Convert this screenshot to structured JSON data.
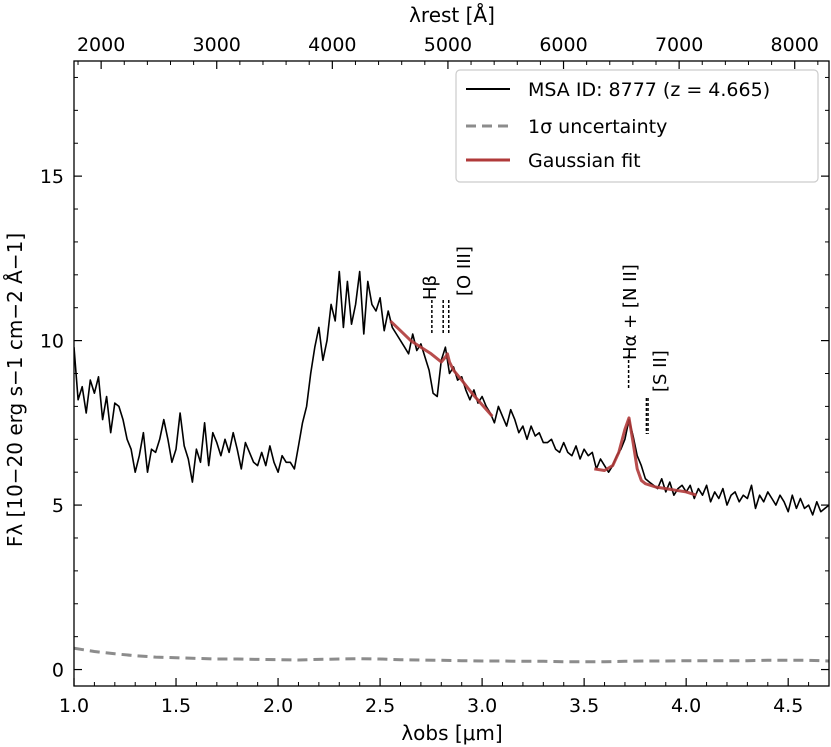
{
  "chart_data": {
    "type": "line",
    "xlabel": "λobs [μm]",
    "xlabel_top": "λrest [Å]",
    "ylabel": "Fλ [10−20 erg s−1 cm−2 Å−1]",
    "xlim": [
      1.0,
      4.7
    ],
    "ylim": [
      -0.5,
      18.5
    ],
    "x_ticks": [
      1.0,
      1.5,
      2.0,
      2.5,
      3.0,
      3.5,
      4.0,
      4.5
    ],
    "x_tick_labels": [
      "1.0",
      "1.5",
      "2.0",
      "2.5",
      "3.0",
      "3.5",
      "4.0",
      "4.5"
    ],
    "y_ticks": [
      0,
      5,
      10,
      15
    ],
    "y_tick_labels": [
      "0",
      "5",
      "10",
      "15"
    ],
    "top_ticks_rest": [
      2000,
      3000,
      4000,
      5000,
      6000,
      7000,
      8000
    ],
    "top_tick_labels": [
      "2000",
      "3000",
      "4000",
      "5000",
      "6000",
      "7000",
      "8000"
    ],
    "redshift": 4.665,
    "legend": {
      "position": "upper right",
      "entries": [
        {
          "label": "MSA ID: 8777 (z = 4.665)",
          "color": "#000000",
          "style": "solid"
        },
        {
          "label": "1σ uncertainty",
          "color": "#8c8c8c",
          "style": "dashed"
        },
        {
          "label": "Gaussian fit",
          "color": "#b03a3a",
          "style": "solid"
        }
      ]
    },
    "series": [
      {
        "name": "MSA ID: 8777 (z = 4.665)",
        "color": "#000000",
        "x": [
          1.0,
          1.02,
          1.04,
          1.06,
          1.08,
          1.1,
          1.12,
          1.14,
          1.16,
          1.18,
          1.2,
          1.22,
          1.24,
          1.26,
          1.28,
          1.3,
          1.32,
          1.34,
          1.36,
          1.38,
          1.4,
          1.42,
          1.44,
          1.46,
          1.48,
          1.5,
          1.52,
          1.54,
          1.56,
          1.58,
          1.6,
          1.62,
          1.64,
          1.66,
          1.68,
          1.7,
          1.72,
          1.74,
          1.76,
          1.78,
          1.8,
          1.82,
          1.84,
          1.86,
          1.88,
          1.9,
          1.92,
          1.94,
          1.96,
          1.98,
          2.0,
          2.02,
          2.04,
          2.06,
          2.08,
          2.1,
          2.12,
          2.14,
          2.16,
          2.18,
          2.2,
          2.22,
          2.24,
          2.26,
          2.28,
          2.3,
          2.32,
          2.34,
          2.36,
          2.38,
          2.4,
          2.42,
          2.44,
          2.46,
          2.48,
          2.5,
          2.52,
          2.54,
          2.56,
          2.58,
          2.6,
          2.62,
          2.64,
          2.66,
          2.68,
          2.7,
          2.72,
          2.74,
          2.76,
          2.78,
          2.8,
          2.82,
          2.84,
          2.86,
          2.88,
          2.9,
          2.92,
          2.94,
          2.96,
          2.98,
          3.0,
          3.02,
          3.04,
          3.06,
          3.08,
          3.1,
          3.12,
          3.14,
          3.16,
          3.18,
          3.2,
          3.22,
          3.24,
          3.26,
          3.28,
          3.3,
          3.32,
          3.34,
          3.36,
          3.38,
          3.4,
          3.42,
          3.44,
          3.46,
          3.48,
          3.5,
          3.52,
          3.54,
          3.56,
          3.58,
          3.6,
          3.62,
          3.64,
          3.66,
          3.68,
          3.7,
          3.72,
          3.74,
          3.76,
          3.78,
          3.8,
          3.82,
          3.84,
          3.86,
          3.88,
          3.9,
          3.92,
          3.94,
          3.96,
          3.98,
          4.0,
          4.02,
          4.04,
          4.06,
          4.08,
          4.1,
          4.12,
          4.14,
          4.16,
          4.18,
          4.2,
          4.22,
          4.24,
          4.26,
          4.28,
          4.3,
          4.32,
          4.34,
          4.36,
          4.38,
          4.4,
          4.42,
          4.44,
          4.46,
          4.48,
          4.5,
          4.52,
          4.54,
          4.56,
          4.58,
          4.6,
          4.62,
          4.64,
          4.66,
          4.68,
          4.7
        ],
        "y": [
          9.8,
          8.2,
          8.6,
          7.8,
          8.8,
          8.4,
          8.9,
          7.6,
          8.3,
          7.2,
          8.1,
          8.0,
          7.6,
          7.0,
          6.7,
          6.0,
          6.5,
          7.2,
          6.0,
          6.7,
          6.6,
          7.0,
          7.6,
          7.0,
          6.3,
          6.7,
          7.8,
          6.8,
          6.4,
          5.7,
          6.7,
          6.3,
          7.5,
          6.2,
          7.2,
          6.9,
          6.5,
          7.0,
          6.6,
          7.2,
          6.7,
          6.1,
          6.9,
          6.6,
          6.3,
          6.2,
          6.6,
          6.2,
          6.8,
          6.3,
          6.0,
          6.5,
          6.3,
          6.3,
          6.1,
          6.8,
          7.5,
          8.0,
          9.0,
          9.8,
          10.4,
          9.4,
          10.0,
          11.1,
          10.6,
          12.1,
          10.4,
          11.8,
          10.5,
          11.1,
          12.1,
          10.2,
          11.8,
          11.1,
          10.9,
          11.3,
          10.3,
          10.9,
          10.4,
          10.2,
          10.0,
          9.8,
          9.6,
          10.2,
          9.7,
          9.9,
          9.5,
          9.1,
          8.4,
          8.3,
          9.4,
          9.8,
          9.0,
          9.2,
          8.8,
          8.9,
          8.5,
          8.2,
          8.5,
          8.1,
          8.3,
          8.0,
          7.8,
          7.5,
          8.0,
          7.7,
          7.4,
          7.9,
          7.6,
          7.2,
          7.4,
          7.0,
          7.4,
          7.1,
          7.2,
          6.9,
          6.9,
          7.0,
          6.7,
          6.6,
          6.9,
          6.6,
          6.5,
          6.8,
          6.4,
          6.7,
          6.5,
          6.6,
          6.1,
          6.4,
          6.2,
          6.0,
          6.2,
          6.5,
          6.7,
          7.0,
          7.6,
          7.1,
          6.5,
          6.2,
          5.8,
          5.7,
          5.6,
          5.5,
          5.8,
          5.4,
          5.7,
          5.3,
          5.5,
          5.6,
          5.4,
          5.6,
          5.2,
          5.5,
          5.3,
          5.6,
          5.1,
          5.4,
          5.2,
          5.5,
          5.0,
          5.3,
          5.4,
          5.1,
          5.3,
          5.2,
          5.6,
          4.9,
          5.3,
          5.1,
          5.4,
          5.2,
          5.0,
          5.3,
          5.1,
          4.8,
          5.3,
          4.9,
          5.2,
          4.9,
          5.0,
          4.7,
          5.1,
          4.8,
          4.9,
          5.0
        ]
      },
      {
        "name": "1σ uncertainty",
        "color": "#8c8c8c",
        "x": [
          1.0,
          1.1,
          1.2,
          1.3,
          1.4,
          1.5,
          1.6,
          1.7,
          1.8,
          1.9,
          2.0,
          2.1,
          2.2,
          2.3,
          2.4,
          2.5,
          2.6,
          2.7,
          2.8,
          2.9,
          3.0,
          3.1,
          3.2,
          3.3,
          3.4,
          3.5,
          3.6,
          3.7,
          3.8,
          3.9,
          4.0,
          4.1,
          4.2,
          4.3,
          4.4,
          4.5,
          4.6,
          4.7
        ],
        "y": [
          0.65,
          0.55,
          0.48,
          0.42,
          0.38,
          0.36,
          0.34,
          0.32,
          0.32,
          0.31,
          0.3,
          0.29,
          0.31,
          0.32,
          0.33,
          0.32,
          0.3,
          0.29,
          0.28,
          0.27,
          0.26,
          0.26,
          0.25,
          0.25,
          0.24,
          0.24,
          0.24,
          0.25,
          0.26,
          0.26,
          0.27,
          0.27,
          0.27,
          0.27,
          0.28,
          0.28,
          0.28,
          0.26
        ]
      },
      {
        "name": "Gaussian fit",
        "color": "#b03a3a",
        "x": [
          2.55,
          2.6,
          2.65,
          2.7,
          2.75,
          2.78,
          2.8,
          2.82,
          2.83,
          2.84,
          2.86,
          2.9,
          2.95,
          3.0,
          3.05
        ],
        "y": [
          10.6,
          10.3,
          10.0,
          9.8,
          9.6,
          9.45,
          9.35,
          9.5,
          9.6,
          9.35,
          9.1,
          8.8,
          8.4,
          8.05,
          7.7
        ]
      },
      {
        "name": "",
        "color": "#b03a3a",
        "x": [
          3.55,
          3.6,
          3.64,
          3.67,
          3.7,
          3.72,
          3.74,
          3.76,
          3.78,
          3.8,
          3.85,
          3.9,
          3.95,
          4.0,
          4.05
        ],
        "y": [
          6.1,
          6.05,
          6.2,
          6.6,
          7.3,
          7.65,
          6.9,
          6.1,
          5.75,
          5.65,
          5.55,
          5.5,
          5.45,
          5.4,
          5.3
        ]
      }
    ],
    "line_markers": [
      {
        "label": "Hβ",
        "rest_wavelengths": [
          4861
        ]
      },
      {
        "label": "[O III]",
        "rest_wavelengths": [
          4959,
          5007
        ]
      },
      {
        "label": "Hα + [N II]",
        "rest_wavelengths": [
          6563
        ]
      },
      {
        "label": "[S II]",
        "rest_wavelengths": [
          6717,
          6731
        ]
      }
    ]
  }
}
